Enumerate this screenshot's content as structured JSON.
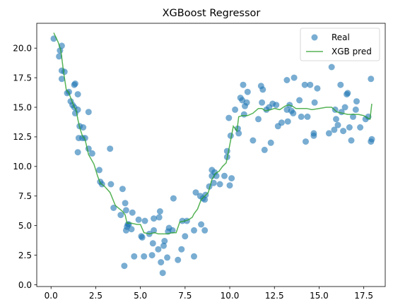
{
  "chart_data": {
    "type": "scatter",
    "title": "XGBoost Regressor",
    "xlabel": "",
    "ylabel": "",
    "xlim": [
      -0.8,
      18.7
    ],
    "ylim": [
      -0.15,
      22.1
    ],
    "xticks": [
      0.0,
      2.5,
      5.0,
      7.5,
      10.0,
      12.5,
      15.0,
      17.5
    ],
    "yticks": [
      0.0,
      2.5,
      5.0,
      7.5,
      10.0,
      12.5,
      15.0,
      17.5,
      20.0
    ],
    "xtick_labels": [
      "0.0",
      "2.5",
      "5.0",
      "7.5",
      "10.0",
      "12.5",
      "15.0",
      "17.5"
    ],
    "ytick_labels": [
      "0.0",
      "2.5",
      "5.0",
      "7.5",
      "10.0",
      "12.5",
      "15.0",
      "17.5",
      "20.0"
    ],
    "grid": false,
    "legend_position": "top-right",
    "series": [
      {
        "name": "Real",
        "kind": "scatter",
        "color": "#1f77b4",
        "points": [
          [
            0.15,
            20.8
          ],
          [
            0.45,
            19.3
          ],
          [
            0.5,
            19.8
          ],
          [
            0.6,
            20.2
          ],
          [
            0.6,
            18.1
          ],
          [
            0.6,
            17.4
          ],
          [
            0.75,
            18.0
          ],
          [
            0.9,
            16.2
          ],
          [
            1.0,
            16.3
          ],
          [
            1.1,
            15.5
          ],
          [
            1.2,
            15.2
          ],
          [
            1.3,
            16.9
          ],
          [
            1.35,
            17.0
          ],
          [
            1.3,
            15.0
          ],
          [
            1.35,
            14.5
          ],
          [
            1.5,
            14.8
          ],
          [
            1.5,
            16.1
          ],
          [
            1.5,
            11.2
          ],
          [
            1.55,
            12.4
          ],
          [
            1.6,
            13.4
          ],
          [
            1.75,
            12.4
          ],
          [
            1.9,
            12.4
          ],
          [
            1.8,
            13.3
          ],
          [
            2.1,
            14.6
          ],
          [
            2.1,
            11.5
          ],
          [
            2.3,
            11.1
          ],
          [
            2.7,
            9.7
          ],
          [
            2.75,
            8.7
          ],
          [
            2.85,
            8.5
          ],
          [
            3.3,
            11.5
          ],
          [
            3.35,
            8.5
          ],
          [
            3.5,
            6.5
          ],
          [
            3.9,
            5.9
          ],
          [
            4.0,
            8.1
          ],
          [
            4.1,
            1.6
          ],
          [
            4.15,
            6.9
          ],
          [
            4.2,
            6.3
          ],
          [
            4.2,
            4.6
          ],
          [
            4.25,
            4.9
          ],
          [
            4.3,
            5.1
          ],
          [
            4.35,
            5.1
          ],
          [
            4.5,
            4.7
          ],
          [
            4.55,
            6.1
          ],
          [
            4.65,
            2.4
          ],
          [
            4.9,
            5.5
          ],
          [
            5.05,
            4.1
          ],
          [
            5.1,
            4.0
          ],
          [
            5.2,
            2.4
          ],
          [
            5.25,
            5.4
          ],
          [
            5.5,
            4.3
          ],
          [
            5.65,
            2.5
          ],
          [
            5.7,
            3.5
          ],
          [
            5.75,
            5.6
          ],
          [
            5.75,
            4.6
          ],
          [
            6.0,
            3.0
          ],
          [
            6.05,
            5.7
          ],
          [
            6.1,
            6.2
          ],
          [
            6.15,
            1.9
          ],
          [
            6.25,
            1.0
          ],
          [
            6.3,
            3.3
          ],
          [
            6.35,
            3.7
          ],
          [
            6.5,
            2.3
          ],
          [
            6.55,
            4.5
          ],
          [
            6.6,
            4.8
          ],
          [
            6.8,
            4.6
          ],
          [
            6.85,
            7.3
          ],
          [
            7.1,
            2.1
          ],
          [
            7.3,
            3.0
          ],
          [
            7.35,
            5.4
          ],
          [
            7.5,
            4.1
          ],
          [
            7.6,
            5.4
          ],
          [
            8.0,
            2.4
          ],
          [
            8.0,
            4.6
          ],
          [
            8.1,
            7.8
          ],
          [
            8.35,
            7.5
          ],
          [
            8.4,
            5.1
          ],
          [
            8.5,
            7.3
          ],
          [
            8.6,
            4.6
          ],
          [
            8.65,
            7.6
          ],
          [
            8.6,
            7.2
          ],
          [
            8.85,
            8.3
          ],
          [
            9.0,
            9.2
          ],
          [
            9.0,
            9.7
          ],
          [
            9.1,
            8.6
          ],
          [
            9.15,
            9.5
          ],
          [
            9.25,
            9.2
          ],
          [
            9.45,
            8.5
          ],
          [
            9.7,
            9.2
          ],
          [
            9.85,
            10.8
          ],
          [
            9.85,
            11.3
          ],
          [
            10.0,
            8.4
          ],
          [
            9.95,
            14.1
          ],
          [
            10.05,
            12.6
          ],
          [
            10.1,
            9.0
          ],
          [
            10.3,
            14.8
          ],
          [
            10.45,
            13.2
          ],
          [
            10.5,
            12.8
          ],
          [
            10.6,
            15.8
          ],
          [
            10.7,
            15.6
          ],
          [
            10.75,
            16.9
          ],
          [
            10.8,
            14.4
          ],
          [
            10.85,
            15.1
          ],
          [
            10.95,
            15.4
          ],
          [
            11.0,
            16.3
          ],
          [
            11.3,
            12.2
          ],
          [
            11.6,
            14.0
          ],
          [
            11.75,
            16.8
          ],
          [
            11.8,
            15.4
          ],
          [
            11.85,
            16.5
          ],
          [
            11.95,
            11.4
          ],
          [
            12.05,
            14.8
          ],
          [
            12.2,
            15.0
          ],
          [
            12.3,
            12.0
          ],
          [
            12.4,
            15.3
          ],
          [
            12.6,
            15.2
          ],
          [
            12.7,
            13.4
          ],
          [
            12.9,
            13.7
          ],
          [
            13.2,
            17.3
          ],
          [
            13.2,
            14.8
          ],
          [
            13.25,
            13.8
          ],
          [
            13.35,
            15.2
          ],
          [
            13.45,
            14.7
          ],
          [
            13.55,
            14.5
          ],
          [
            13.6,
            17.5
          ],
          [
            13.9,
            15.6
          ],
          [
            14.0,
            14.2
          ],
          [
            14.2,
            16.9
          ],
          [
            14.25,
            12.1
          ],
          [
            14.35,
            14.2
          ],
          [
            14.5,
            16.9
          ],
          [
            14.7,
            12.8
          ],
          [
            14.7,
            12.6
          ],
          [
            14.75,
            15.4
          ],
          [
            14.9,
            16.6
          ],
          [
            15.55,
            12.8
          ],
          [
            15.7,
            18.4
          ],
          [
            15.85,
            13.1
          ],
          [
            15.9,
            14.8
          ],
          [
            15.95,
            14.0
          ],
          [
            16.05,
            13.5
          ],
          [
            16.2,
            16.9
          ],
          [
            16.25,
            14.6
          ],
          [
            16.35,
            13.0
          ],
          [
            16.45,
            15.0
          ],
          [
            16.55,
            16.1
          ],
          [
            16.6,
            16.2
          ],
          [
            16.7,
            13.3
          ],
          [
            16.8,
            12.2
          ],
          [
            16.9,
            14.2
          ],
          [
            17.05,
            14.8
          ],
          [
            17.1,
            15.5
          ],
          [
            17.3,
            13.3
          ],
          [
            17.6,
            14.0
          ],
          [
            17.75,
            14.2
          ],
          [
            17.9,
            12.1
          ],
          [
            17.95,
            12.3
          ],
          [
            17.9,
            17.4
          ]
        ]
      },
      {
        "name": "XGB pred",
        "kind": "line",
        "color": "#2ca02c",
        "points": [
          [
            0.15,
            21.3
          ],
          [
            0.4,
            20.5
          ],
          [
            0.55,
            19.8
          ],
          [
            0.7,
            18.0
          ],
          [
            0.85,
            16.5
          ],
          [
            1.0,
            16.2
          ],
          [
            1.1,
            15.8
          ],
          [
            1.2,
            15.4
          ],
          [
            1.3,
            15.0
          ],
          [
            1.4,
            14.8
          ],
          [
            1.5,
            14.0
          ],
          [
            1.6,
            13.3
          ],
          [
            1.75,
            12.6
          ],
          [
            1.9,
            12.3
          ],
          [
            2.1,
            11.0
          ],
          [
            2.4,
            10.2
          ],
          [
            2.6,
            9.2
          ],
          [
            2.75,
            8.6
          ],
          [
            3.0,
            8.3
          ],
          [
            3.3,
            7.8
          ],
          [
            3.6,
            6.7
          ],
          [
            4.0,
            6.2
          ],
          [
            4.15,
            5.9
          ],
          [
            4.25,
            5.2
          ],
          [
            4.5,
            5.2
          ],
          [
            4.8,
            5.1
          ],
          [
            5.0,
            5.1
          ],
          [
            5.2,
            4.4
          ],
          [
            5.5,
            4.3
          ],
          [
            5.8,
            4.4
          ],
          [
            6.0,
            4.3
          ],
          [
            6.2,
            4.3
          ],
          [
            6.5,
            4.3
          ],
          [
            6.8,
            4.4
          ],
          [
            7.0,
            4.4
          ],
          [
            7.2,
            5.3
          ],
          [
            7.5,
            5.4
          ],
          [
            7.7,
            5.5
          ],
          [
            7.9,
            5.7
          ],
          [
            8.0,
            6.0
          ],
          [
            8.2,
            6.4
          ],
          [
            8.4,
            7.2
          ],
          [
            8.6,
            7.5
          ],
          [
            8.8,
            7.8
          ],
          [
            9.0,
            8.9
          ],
          [
            9.2,
            9.4
          ],
          [
            9.4,
            9.6
          ],
          [
            9.6,
            10.0
          ],
          [
            9.8,
            10.3
          ],
          [
            10.0,
            11.8
          ],
          [
            10.2,
            13.4
          ],
          [
            10.4,
            13.0
          ],
          [
            10.5,
            14.2
          ],
          [
            10.7,
            14.3
          ],
          [
            11.0,
            14.3
          ],
          [
            11.3,
            14.5
          ],
          [
            11.6,
            14.9
          ],
          [
            11.8,
            14.9
          ],
          [
            12.0,
            14.7
          ],
          [
            12.3,
            14.8
          ],
          [
            12.5,
            14.9
          ],
          [
            12.8,
            14.8
          ],
          [
            13.1,
            15.1
          ],
          [
            13.3,
            15.2
          ],
          [
            13.5,
            15.1
          ],
          [
            13.7,
            14.9
          ],
          [
            14.0,
            14.9
          ],
          [
            14.3,
            14.9
          ],
          [
            14.6,
            14.8
          ],
          [
            15.0,
            14.9
          ],
          [
            15.4,
            15.0
          ],
          [
            15.7,
            15.0
          ],
          [
            16.0,
            14.6
          ],
          [
            16.3,
            14.5
          ],
          [
            16.6,
            14.4
          ],
          [
            16.9,
            14.4
          ],
          [
            17.2,
            14.4
          ],
          [
            17.5,
            14.3
          ],
          [
            17.7,
            14.1
          ],
          [
            17.85,
            14.0
          ],
          [
            17.95,
            15.3
          ]
        ]
      }
    ]
  }
}
